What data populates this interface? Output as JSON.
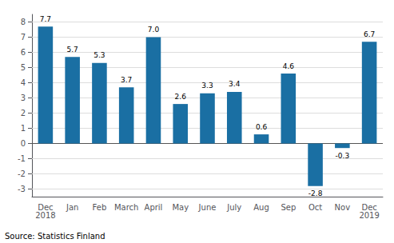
{
  "chart_data": {
    "type": "bar",
    "categories": [
      "Dec\n2018",
      "Jan",
      "Feb",
      "March",
      "April",
      "May",
      "June",
      "July",
      "Aug",
      "Sep",
      "Oct",
      "Nov",
      "Dec\n2019"
    ],
    "values": [
      7.7,
      5.7,
      5.3,
      3.7,
      7.0,
      2.6,
      3.3,
      3.4,
      0.6,
      4.6,
      -2.8,
      -0.3,
      6.7
    ],
    "value_labels": [
      "7.7",
      "5.7",
      "5.3",
      "3.7",
      "7.0",
      "2.6",
      "3.3",
      "3.4",
      "0.6",
      "4.6",
      "-2.8",
      "-0.3",
      "6.7"
    ],
    "color": "#1a6fa3",
    "ylim": [
      -3.5,
      8.5
    ],
    "yticks": [
      -3,
      -2,
      -1,
      0,
      1,
      2,
      3,
      4,
      5,
      6,
      7,
      8
    ],
    "grid": true,
    "data_labels": true,
    "annotations": [
      "Source: Statistics Finland"
    ]
  }
}
